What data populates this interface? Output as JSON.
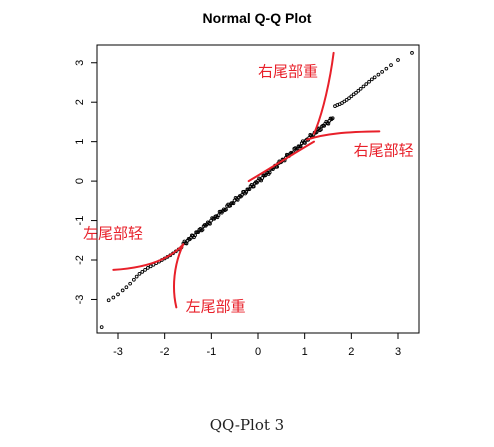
{
  "caption": "QQ-Plot 3",
  "chart_data": {
    "type": "scatter",
    "title": "Normal Q-Q Plot",
    "xlabel": "",
    "ylabel": "",
    "xlim": [
      -3.45,
      3.45
    ],
    "ylim": [
      -3.85,
      3.45
    ],
    "x_ticks": [
      -3,
      -2,
      -1,
      0,
      1,
      2,
      3
    ],
    "y_ticks": [
      -3,
      -2,
      -1,
      0,
      1,
      2,
      3
    ],
    "grid": false,
    "point_color": "#000000",
    "annotation_color": "#e8202a",
    "points": [
      [
        -3.35,
        -3.7
      ],
      [
        -3.2,
        -3.02
      ],
      [
        -3.1,
        -2.95
      ],
      [
        -3.0,
        -2.87
      ],
      [
        -2.9,
        -2.77
      ],
      [
        -2.82,
        -2.69
      ],
      [
        -2.74,
        -2.6
      ],
      [
        -2.66,
        -2.5
      ],
      [
        -2.6,
        -2.42
      ],
      [
        -2.54,
        -2.35
      ],
      [
        -2.48,
        -2.3
      ],
      [
        -2.42,
        -2.25
      ],
      [
        -2.36,
        -2.2
      ],
      [
        -2.3,
        -2.16
      ],
      [
        -2.24,
        -2.12
      ],
      [
        -2.18,
        -2.08
      ],
      [
        -2.12,
        -2.04
      ],
      [
        -2.06,
        -2.0
      ],
      [
        -2.0,
        -1.96
      ],
      [
        -1.94,
        -1.92
      ],
      [
        -1.88,
        -1.88
      ],
      [
        -1.82,
        -1.83
      ],
      [
        -1.76,
        -1.78
      ],
      [
        -1.7,
        -1.73
      ],
      [
        -1.64,
        -1.68
      ],
      [
        1.65,
        1.9
      ],
      [
        1.7,
        1.93
      ],
      [
        1.75,
        1.95
      ],
      [
        1.8,
        1.98
      ],
      [
        1.85,
        2.02
      ],
      [
        1.9,
        2.06
      ],
      [
        1.95,
        2.1
      ],
      [
        2.0,
        2.15
      ],
      [
        2.05,
        2.2
      ],
      [
        2.1,
        2.24
      ],
      [
        2.15,
        2.29
      ],
      [
        2.2,
        2.34
      ],
      [
        2.26,
        2.4
      ],
      [
        2.32,
        2.46
      ],
      [
        2.38,
        2.52
      ],
      [
        2.44,
        2.58
      ],
      [
        2.5,
        2.63
      ],
      [
        2.58,
        2.7
      ],
      [
        2.66,
        2.77
      ],
      [
        2.75,
        2.85
      ],
      [
        2.85,
        2.94
      ],
      [
        3.0,
        3.07
      ],
      [
        3.3,
        3.25
      ]
    ],
    "dense_band": {
      "x_from": -1.6,
      "x_to": 1.6,
      "slope": 1.0,
      "intercept": 0.0
    },
    "annotations": [
      {
        "label": "右尾部重",
        "curve": [
          [
            1.2,
            1.2
          ],
          [
            1.4,
            1.75
          ],
          [
            1.55,
            2.6
          ],
          [
            1.62,
            3.25
          ]
        ],
        "text_at": [
          0.0,
          2.65
        ]
      },
      {
        "label": "右尾部轻",
        "curve": [
          [
            1.05,
            1.05
          ],
          [
            1.4,
            1.2
          ],
          [
            1.9,
            1.25
          ],
          [
            2.6,
            1.26
          ]
        ],
        "text_at": [
          2.05,
          0.65
        ]
      },
      {
        "label": "左尾部轻",
        "curve": [
          [
            -1.6,
            -1.6
          ],
          [
            -1.9,
            -2.0
          ],
          [
            -2.4,
            -2.2
          ],
          [
            -3.1,
            -2.25
          ]
        ],
        "text_at": [
          -3.75,
          -1.45
        ]
      },
      {
        "label": "左尾部重",
        "curve": [
          [
            -1.6,
            -1.6
          ],
          [
            -1.8,
            -2.1
          ],
          [
            -1.85,
            -2.7
          ],
          [
            -1.75,
            -3.2
          ]
        ],
        "text_at": [
          -1.55,
          -3.3
        ]
      },
      {
        "label": "",
        "curve": [
          [
            -0.2,
            0.0
          ],
          [
            0.3,
            0.35
          ],
          [
            0.7,
            0.65
          ],
          [
            1.2,
            1.0
          ]
        ],
        "text_at": null
      }
    ]
  }
}
